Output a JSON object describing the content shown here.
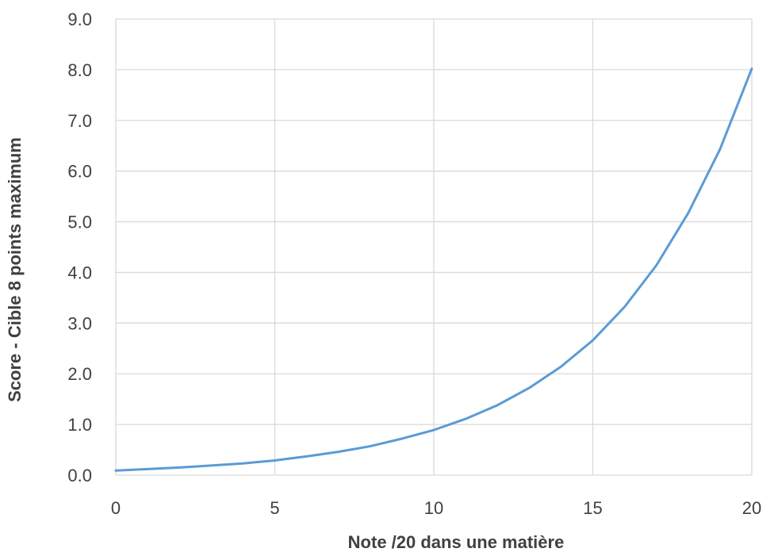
{
  "chart_data": {
    "type": "line",
    "title": "",
    "xlabel": "Note /20 dans une matière",
    "ylabel": "Score - Cible 8 points maximum",
    "xlim": [
      0,
      20
    ],
    "ylim": [
      0,
      9
    ],
    "x_ticks": [
      "0",
      "5",
      "10",
      "15",
      "20"
    ],
    "x_tick_values": [
      0,
      5,
      10,
      15,
      20
    ],
    "y_ticks": [
      "0.0",
      "1.0",
      "2.0",
      "3.0",
      "4.0",
      "5.0",
      "6.0",
      "7.0",
      "8.0",
      "9.0"
    ],
    "y_tick_values": [
      0,
      1,
      2,
      3,
      4,
      5,
      6,
      7,
      8,
      9
    ],
    "grid": true,
    "legend": "none",
    "colors": {
      "series": "#5b9bd5",
      "grid": "#d9d9d9",
      "text": "#404040"
    },
    "series": [
      {
        "x": [
          0,
          1,
          2,
          3,
          4,
          5,
          6,
          7,
          8,
          9,
          10,
          11,
          12,
          13,
          14,
          15,
          16,
          17,
          18,
          19,
          20
        ],
        "values": [
          0.09,
          0.12,
          0.15,
          0.19,
          0.23,
          0.29,
          0.37,
          0.46,
          0.57,
          0.72,
          0.89,
          1.11,
          1.38,
          1.72,
          2.14,
          2.66,
          3.32,
          4.14,
          5.17,
          6.43,
          8.02
        ]
      }
    ]
  }
}
